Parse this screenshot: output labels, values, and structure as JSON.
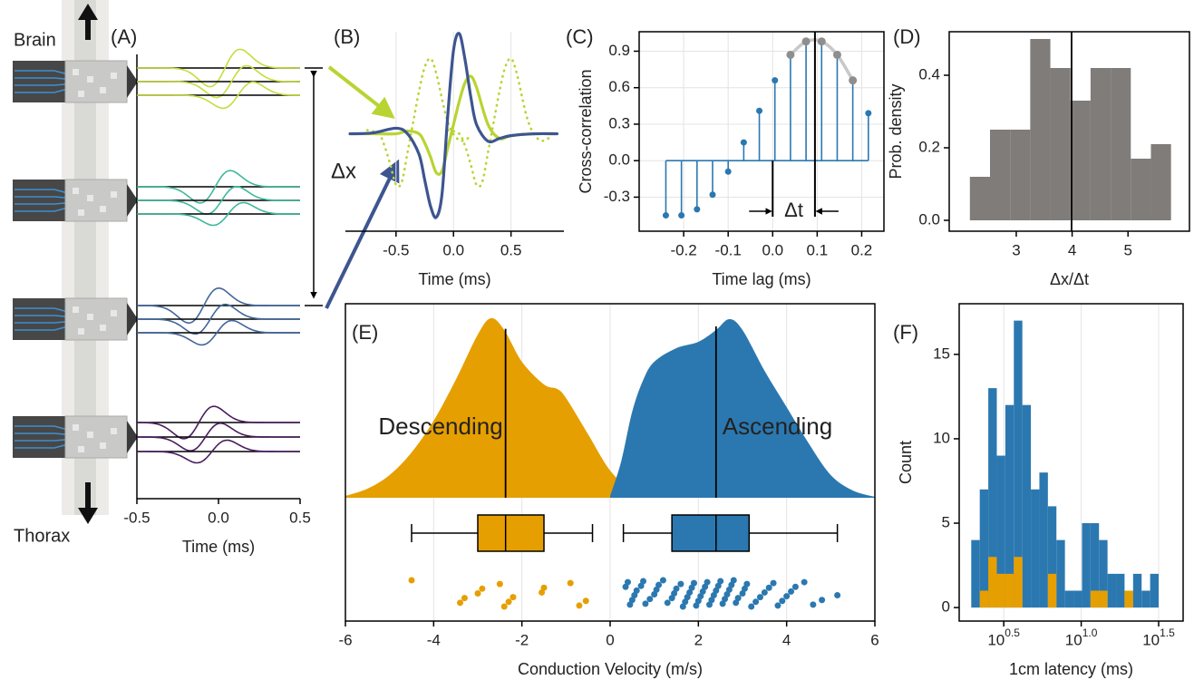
{
  "chart_data": [
    {
      "type": "traces",
      "label": "(A)",
      "xlabel": "Time (ms)",
      "xlim": [
        -0.5,
        0.5
      ],
      "xticks": [
        -0.5,
        {
          "value": 0,
          "label": "0.0"
        },
        0.5
      ],
      "annotations": [
        "Brain",
        "Thorax",
        "Δx"
      ],
      "colors": [
        "#c6dc3e",
        "#3db99b",
        "#41679d",
        "#4b1d5f"
      ]
    },
    {
      "type": "line",
      "label": "(B)",
      "xlabel": "Time (ms)",
      "xlim": [
        -0.94,
        0.96
      ],
      "ylim": [
        -1.05,
        1.1
      ],
      "xticks": [
        -0.5,
        {
          "value": 0,
          "label": "0.0"
        },
        0.5
      ],
      "grid": "x",
      "series": [
        {
          "color": "#b8d432",
          "style": "dotted",
          "x": [
            -0.75,
            -0.65,
            -0.6,
            -0.55,
            -0.5,
            -0.45,
            -0.4,
            -0.35,
            -0.3,
            -0.25,
            -0.2,
            -0.15,
            -0.05,
            0.05,
            0.15
          ],
          "values": [
            0.04,
            0,
            -0.13,
            -0.33,
            -0.55,
            -0.52,
            -0.2,
            0.13,
            0.46,
            0.72,
            0.81,
            0.65,
            0.13,
            -0.07,
            -0.03
          ]
        },
        {
          "color": "#b8d432",
          "style": "dotted",
          "x": [
            -0.05,
            0.05,
            0.1,
            0.15,
            0.2,
            0.25,
            0.3,
            0.35,
            0.4,
            0.45,
            0.5,
            0.55,
            0.65,
            0.75,
            0.85
          ],
          "values": [
            0.04,
            0,
            -0.13,
            -0.33,
            -0.55,
            -0.52,
            -0.2,
            0.13,
            0.46,
            0.72,
            0.81,
            0.65,
            0.13,
            -0.07,
            -0.03
          ]
        },
        {
          "color": "#b8d432",
          "style": "solid",
          "x": [
            -0.9,
            -0.7,
            -0.5,
            -0.4,
            -0.3,
            -0.25,
            -0.2,
            -0.15,
            -0.1,
            -0.05,
            0,
            0.05,
            0.1,
            0.15,
            0.2,
            0.3,
            0.4,
            0.5,
            0.7,
            0.9
          ],
          "values": [
            0,
            0,
            0,
            0.03,
            0,
            -0.1,
            -0.25,
            -0.42,
            -0.4,
            -0.15,
            0.1,
            0.35,
            0.55,
            0.62,
            0.5,
            0.1,
            -0.05,
            -0.02,
            0,
            0
          ]
        },
        {
          "color": "#3d5590",
          "style": "solid",
          "x": [
            -0.9,
            -0.7,
            -0.5,
            -0.4,
            -0.3,
            -0.25,
            -0.2,
            -0.15,
            -0.1,
            -0.05,
            0,
            0.05,
            0.1,
            0.15,
            0.2,
            0.3,
            0.4,
            0.5,
            0.7,
            0.9
          ],
          "values": [
            0,
            0.01,
            0.06,
            0,
            -0.22,
            -0.5,
            -0.78,
            -0.9,
            -0.65,
            0.2,
            0.9,
            1.08,
            0.8,
            0.4,
            0.1,
            -0.08,
            -0.05,
            -0.02,
            0,
            0
          ]
        }
      ]
    },
    {
      "type": "stem",
      "label": "(C)",
      "xlabel": "Time lag (ms)",
      "ylabel": "Cross-correlation",
      "xlim": [
        -0.3,
        0.25
      ],
      "ylim": [
        -0.58,
        1.06
      ],
      "xticks": [
        -0.2,
        -0.1,
        {
          "value": 0,
          "label": "0.0"
        },
        0.1,
        0.2
      ],
      "yticks": [
        -0.3,
        {
          "value": 0,
          "label": "0.0"
        },
        0.3,
        0.6,
        0.9
      ],
      "grid": "both",
      "frame": true,
      "series": [
        {
          "color": "#2b78b0",
          "style": "stem",
          "x": [
            -0.24,
            -0.205,
            -0.17,
            -0.135,
            -0.1,
            -0.065,
            -0.03,
            0.005,
            0.04,
            0.075,
            0.11,
            0.145,
            0.18,
            0.215
          ],
          "values": [
            -0.45,
            -0.45,
            -0.4,
            -0.28,
            -0.09,
            0.15,
            0.41,
            0.66,
            0.87,
            0.98,
            0.98,
            0.87,
            0.66,
            0.39
          ]
        },
        {
          "color": "#8e8e8e",
          "style": "fit",
          "x": [
            0.04,
            0.075,
            0.11,
            0.145,
            0.18
          ],
          "values": [
            0.87,
            0.98,
            0.98,
            0.87,
            0.66
          ]
        }
      ],
      "vlines": [
        0,
        0.095
      ],
      "annotations": [
        "Δt"
      ]
    },
    {
      "type": "histogram",
      "label": "(D)",
      "xlabel": "Δx/Δt",
      "ylabel": "Prob. density",
      "xlim": [
        1.8,
        6.1
      ],
      "ylim": [
        -0.03,
        0.52
      ],
      "xticks": [
        3,
        4,
        5
      ],
      "yticks": [
        {
          "value": 0,
          "label": "0.0"
        },
        0.2,
        0.4
      ],
      "frame": true,
      "bins": [
        2.17,
        2.53,
        2.89,
        3.25,
        3.61,
        3.97,
        4.33,
        4.69,
        5.05,
        5.41,
        5.77
      ],
      "values": [
        0.12,
        0.25,
        0.25,
        0.5,
        0.42,
        0.33,
        0.42,
        0.42,
        0.17,
        0.21
      ],
      "color": "#7f7c79",
      "vlines": [
        3.99
      ]
    },
    {
      "type": "ridgeline",
      "label": "(E)",
      "xlabel": "Conduction Velocity (m/s)",
      "xlim": [
        -6,
        6
      ],
      "xticks": [
        -6,
        -4,
        -2,
        0,
        2,
        4,
        6
      ],
      "grid": "x",
      "frame": true,
      "series": [
        {
          "name": "Descending",
          "color": "#e69f00",
          "x": [
            -6,
            -5.5,
            -5,
            -4.5,
            -4,
            -3.5,
            -3,
            -2.7,
            -2.4,
            -2,
            -1.5,
            -1.2,
            -1,
            -0.5,
            0,
            0.5,
            1
          ],
          "density": [
            0.004,
            0.02,
            0.05,
            0.1,
            0.17,
            0.26,
            0.36,
            0.396,
            0.37,
            0.3,
            0.25,
            0.24,
            0.22,
            0.14,
            0.06,
            0.016,
            0.002
          ],
          "box": {
            "whisker_low": -4.5,
            "q1": -3.0,
            "median": -2.37,
            "q3": -1.5,
            "whisker_high": -0.4
          },
          "points": [
            -4.5,
            -3.4,
            -3.3,
            -3.0,
            -2.9,
            -2.5,
            -2.4,
            -2.3,
            -2.2,
            -1.55,
            -1.5,
            -0.9,
            -0.7,
            -0.55
          ]
        },
        {
          "name": "Ascending",
          "color": "#2b78b0",
          "x": [
            0,
            0.25,
            0.5,
            0.75,
            1,
            1.5,
            2,
            2.4,
            2.7,
            3,
            3.5,
            4,
            4.5,
            5,
            5.5,
            6
          ],
          "density": [
            0.004,
            0.08,
            0.19,
            0.26,
            0.3,
            0.33,
            0.344,
            0.37,
            0.394,
            0.37,
            0.28,
            0.2,
            0.12,
            0.05,
            0.016,
            0.002
          ],
          "box": {
            "whisker_low": 0.3,
            "q1": 1.4,
            "median": 2.4,
            "q3": 3.15,
            "whisker_high": 5.15
          },
          "points": [
            0.35,
            0.4,
            0.45,
            0.5,
            0.55,
            0.6,
            0.7,
            0.75,
            0.8,
            0.9,
            1.0,
            1.05,
            1.1,
            1.2,
            1.3,
            1.4,
            1.45,
            1.5,
            1.6,
            1.65,
            1.7,
            1.75,
            1.8,
            1.85,
            1.9,
            1.95,
            2.0,
            2.05,
            2.1,
            2.15,
            2.2,
            2.25,
            2.3,
            2.35,
            2.4,
            2.45,
            2.5,
            2.55,
            2.6,
            2.65,
            2.7,
            2.75,
            2.8,
            2.85,
            2.9,
            3.0,
            3.05,
            3.1,
            3.2,
            3.3,
            3.4,
            3.5,
            3.6,
            3.7,
            3.8,
            3.9,
            4.0,
            4.1,
            4.2,
            4.4,
            4.6,
            4.8,
            5.15
          ]
        }
      ]
    },
    {
      "type": "histogram",
      "label": "(F)",
      "xlabel": "1cm latency (ms)",
      "ylabel": "Count",
      "log_x": true,
      "xlim": [
        1.63,
        45.5
      ],
      "ylim": [
        -0.8,
        18
      ],
      "grid": "x",
      "frame": true,
      "xticks": [
        {
          "value": 3.162,
          "label": "10",
          "superscript": "0.5"
        },
        {
          "value": 10,
          "label": "10",
          "superscript": "1.0"
        },
        {
          "value": 31.62,
          "label": "10",
          "superscript": "1.5"
        }
      ],
      "yticks": [
        0,
        5,
        10,
        15
      ],
      "bins": [
        1.95,
        2.213,
        2.512,
        2.851,
        3.236,
        3.673,
        4.169,
        4.732,
        5.37,
        6.095,
        6.918,
        7.852,
        8.913,
        10.12,
        11.48,
        13.03,
        14.79,
        16.79,
        19.05,
        21.63,
        24.55,
        27.86,
        31.62
      ],
      "series": [
        {
          "color": "#2b78b0",
          "values": [
            4,
            7,
            13,
            9,
            12,
            17,
            12,
            7,
            8,
            6,
            4,
            1,
            1,
            5,
            5,
            4,
            2,
            2,
            1,
            2,
            1,
            2
          ]
        },
        {
          "color": "#e69f00",
          "values": [
            0,
            1,
            3,
            2,
            2,
            3,
            0,
            0,
            0,
            2,
            0,
            0,
            0,
            0,
            1,
            1,
            0,
            0,
            1,
            0,
            0,
            0
          ]
        }
      ]
    }
  ]
}
